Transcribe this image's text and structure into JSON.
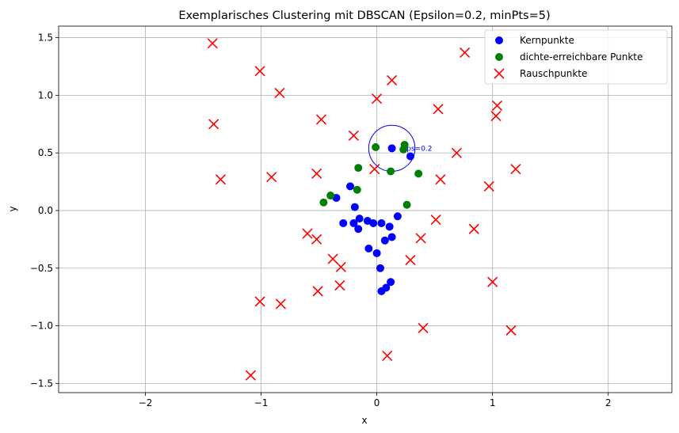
{
  "chart_data": {
    "type": "scatter",
    "title": "Exemplarisches Clustering mit DBSCAN (Epsilon=0.2, minPts=5)",
    "xlabel": "x",
    "ylabel": "y",
    "xlim": [
      -2.75,
      2.55
    ],
    "ylim": [
      -1.58,
      1.6
    ],
    "xticks": [
      -2,
      -1,
      0,
      1,
      2
    ],
    "yticks": [
      -1.5,
      -1.0,
      -0.5,
      0.0,
      0.5,
      1.0,
      1.5
    ],
    "xtick_labels": [
      "−2",
      "−1",
      "0",
      "1",
      "2"
    ],
    "ytick_labels": [
      "−1.5",
      "−1.0",
      "−0.5",
      "0.0",
      "0.5",
      "1.0",
      "1.5"
    ],
    "grid": true,
    "legend_position": "top-right",
    "series": [
      {
        "name": "Kernpunkte",
        "marker": "circle",
        "color": "#0000ff",
        "points": [
          [
            0.13,
            0.54
          ],
          [
            0.29,
            0.47
          ],
          [
            -0.23,
            0.21
          ],
          [
            -0.35,
            0.11
          ],
          [
            -0.19,
            0.03
          ],
          [
            -0.15,
            -0.07
          ],
          [
            -0.08,
            -0.09
          ],
          [
            -0.03,
            -0.11
          ],
          [
            -0.2,
            -0.11
          ],
          [
            -0.29,
            -0.11
          ],
          [
            0.04,
            -0.11
          ],
          [
            0.18,
            -0.05
          ],
          [
            0.11,
            -0.14
          ],
          [
            -0.16,
            -0.16
          ],
          [
            0.13,
            -0.23
          ],
          [
            0.07,
            -0.26
          ],
          [
            -0.07,
            -0.33
          ],
          [
            0.0,
            -0.37
          ],
          [
            0.03,
            -0.5
          ],
          [
            0.12,
            -0.62
          ],
          [
            0.08,
            -0.67
          ],
          [
            0.04,
            -0.7
          ]
        ]
      },
      {
        "name": "dichte-erreichbare Punkte",
        "marker": "circle",
        "color": "#008000",
        "points": [
          [
            -0.01,
            0.55
          ],
          [
            0.24,
            0.57
          ],
          [
            0.23,
            0.53
          ],
          [
            -0.16,
            0.37
          ],
          [
            0.12,
            0.34
          ],
          [
            0.36,
            0.32
          ],
          [
            -0.4,
            0.13
          ],
          [
            -0.17,
            0.18
          ],
          [
            -0.46,
            0.07
          ],
          [
            0.26,
            0.05
          ]
        ]
      },
      {
        "name": "Rauschpunkte",
        "marker": "x",
        "color": "#ff0000",
        "points": [
          [
            -1.42,
            1.45
          ],
          [
            -1.01,
            1.21
          ],
          [
            0.76,
            1.37
          ],
          [
            -0.84,
            1.02
          ],
          [
            0.13,
            1.13
          ],
          [
            0.0,
            0.97
          ],
          [
            0.53,
            0.88
          ],
          [
            1.04,
            0.91
          ],
          [
            1.03,
            0.82
          ],
          [
            -1.41,
            0.75
          ],
          [
            -0.48,
            0.79
          ],
          [
            -0.2,
            0.65
          ],
          [
            0.69,
            0.5
          ],
          [
            1.2,
            0.36
          ],
          [
            -1.35,
            0.27
          ],
          [
            -0.91,
            0.29
          ],
          [
            -0.52,
            0.32
          ],
          [
            -0.02,
            0.36
          ],
          [
            0.55,
            0.27
          ],
          [
            0.97,
            0.21
          ],
          [
            0.51,
            -0.08
          ],
          [
            0.84,
            -0.16
          ],
          [
            -0.6,
            -0.2
          ],
          [
            -0.52,
            -0.25
          ],
          [
            0.38,
            -0.24
          ],
          [
            -0.38,
            -0.42
          ],
          [
            -0.31,
            -0.49
          ],
          [
            0.29,
            -0.43
          ],
          [
            1.0,
            -0.62
          ],
          [
            -0.32,
            -0.65
          ],
          [
            -0.51,
            -0.7
          ],
          [
            -1.01,
            -0.79
          ],
          [
            -0.83,
            -0.81
          ],
          [
            0.4,
            -1.02
          ],
          [
            1.16,
            -1.04
          ],
          [
            0.09,
            -1.26
          ],
          [
            -1.09,
            -1.43
          ]
        ]
      }
    ],
    "annotations": [
      {
        "type": "circle",
        "center": [
          0.13,
          0.54
        ],
        "radius": 0.2,
        "color": "#0000ff",
        "text": "eps=0.2"
      }
    ]
  }
}
